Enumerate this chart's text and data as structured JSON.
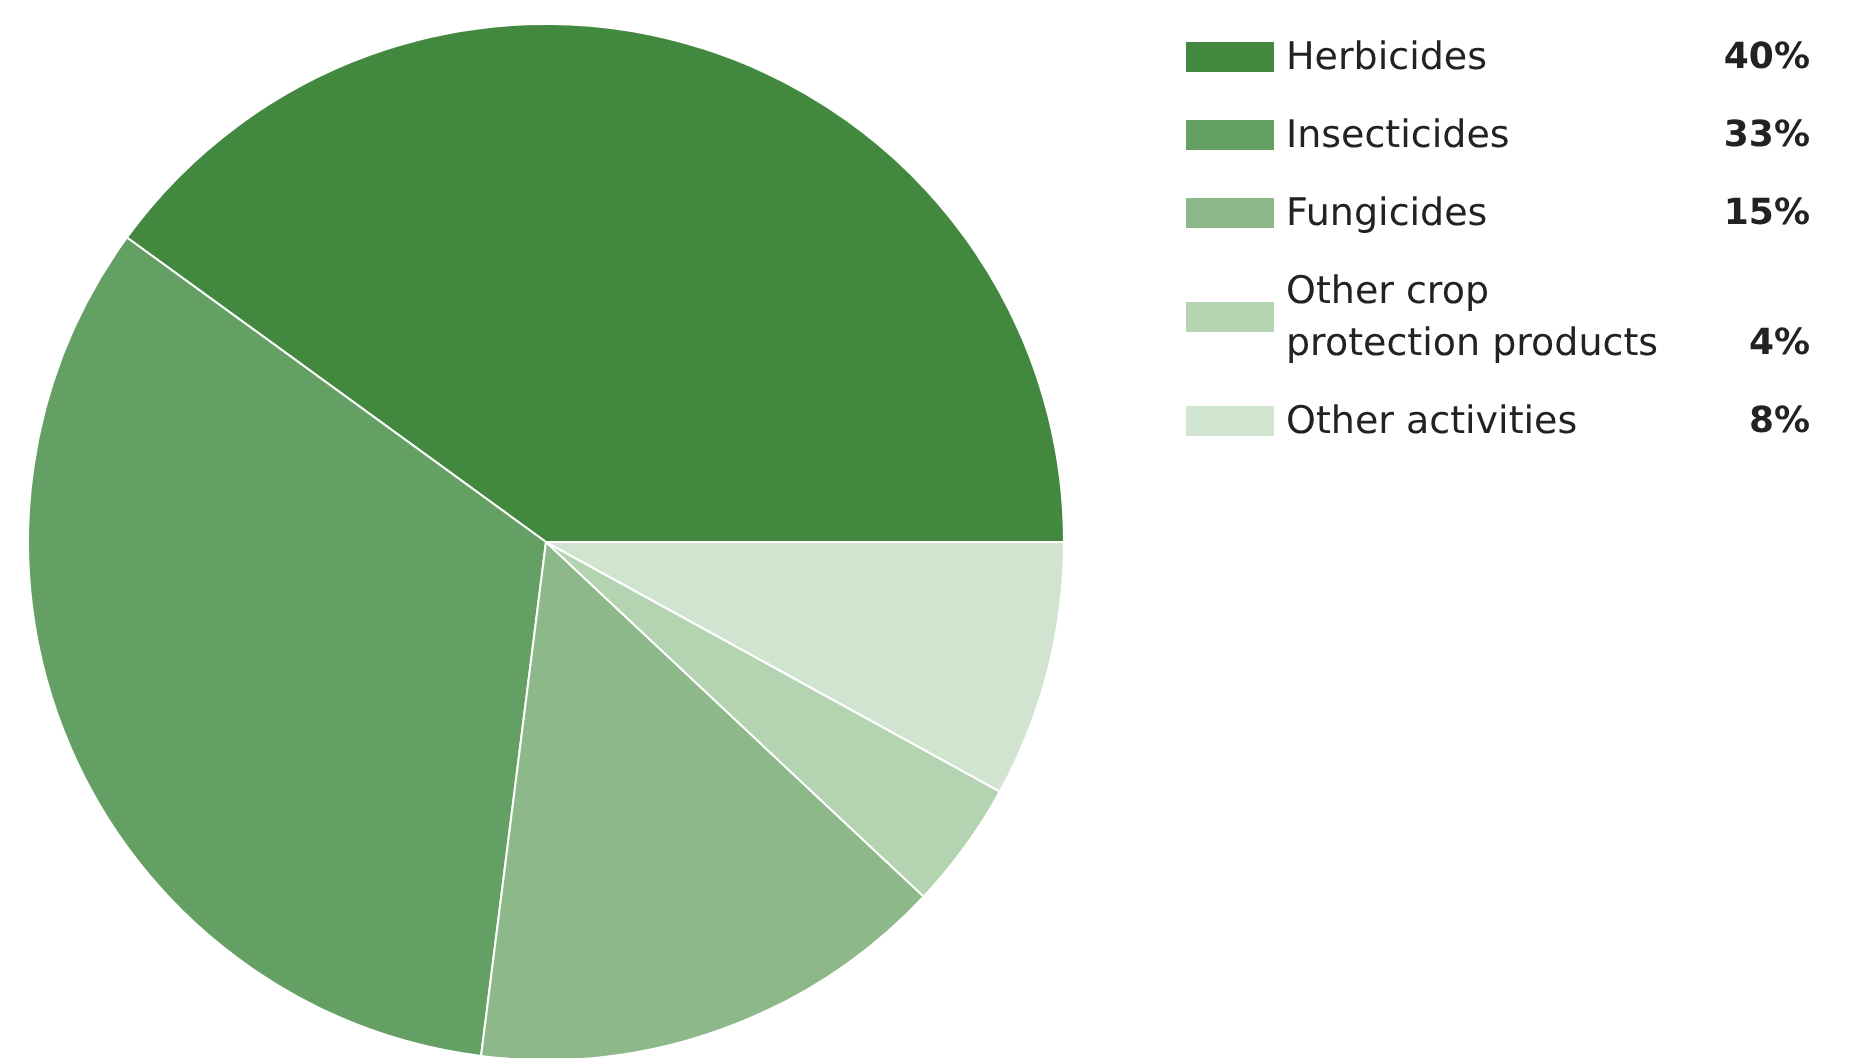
{
  "chart_data": {
    "type": "pie",
    "categories": [
      "Herbicides",
      "Insecticides",
      "Fungicides",
      "Other crop protection products",
      "Other activities"
    ],
    "values": [
      40,
      33,
      15,
      4,
      8
    ],
    "colors": [
      "#42883f",
      "#64a064",
      "#8db88a",
      "#b3d3b1",
      "#d0e4cf"
    ],
    "value_labels": [
      "40%",
      "33%",
      "15%",
      "4%",
      "8%"
    ],
    "legend": "right"
  }
}
